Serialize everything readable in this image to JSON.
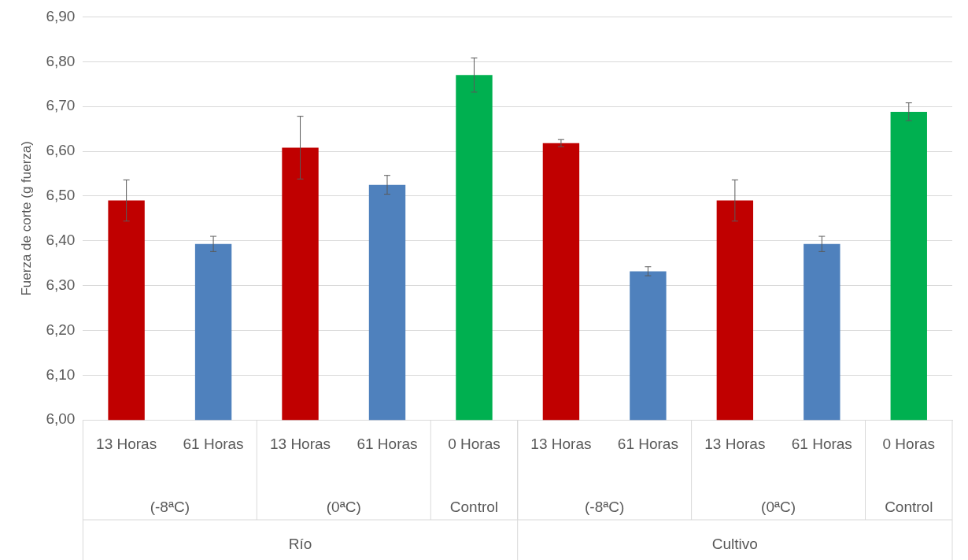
{
  "chart_data": {
    "type": "bar",
    "ylabel": "Fuerza de corte (g fuerza)",
    "categories": [
      "13 Horas",
      "61 Horas",
      "13 Horas",
      "61 Horas",
      "0 Horas",
      "13 Horas",
      "61 Horas",
      "13 Horas",
      "61 Horas",
      "0 Horas"
    ],
    "values": [
      6.49,
      6.393,
      6.608,
      6.525,
      6.77,
      6.618,
      6.332,
      6.49,
      6.393,
      6.688
    ],
    "errors": [
      0.046,
      0.017,
      0.07,
      0.021,
      0.038,
      0.008,
      0.01,
      0.046,
      0.017,
      0.02
    ],
    "colors": [
      "#c00000",
      "#4f81bd",
      "#c00000",
      "#4f81bd",
      "#00b050",
      "#c00000",
      "#4f81bd",
      "#c00000",
      "#4f81bd",
      "#00b050"
    ],
    "ylim": [
      6.0,
      6.9
    ],
    "yticks": [
      {
        "value": 6.0,
        "label": "6,00"
      },
      {
        "value": 6.1,
        "label": "6,10"
      },
      {
        "value": 6.2,
        "label": "6,20"
      },
      {
        "value": 6.3,
        "label": "6,30"
      },
      {
        "value": 6.4,
        "label": "6,40"
      },
      {
        "value": 6.5,
        "label": "6,50"
      },
      {
        "value": 6.6,
        "label": "6,60"
      },
      {
        "value": 6.7,
        "label": "6,70"
      },
      {
        "value": 6.8,
        "label": "6,80"
      },
      {
        "value": 6.9,
        "label": "6,90"
      }
    ],
    "annotations": [
      "(-8ªC)",
      "(0ªC)",
      "Control",
      "(-8ªC)",
      "(0ªC)",
      "Control",
      "Río",
      "Cultivo"
    ],
    "grid": "y",
    "legend": false
  }
}
